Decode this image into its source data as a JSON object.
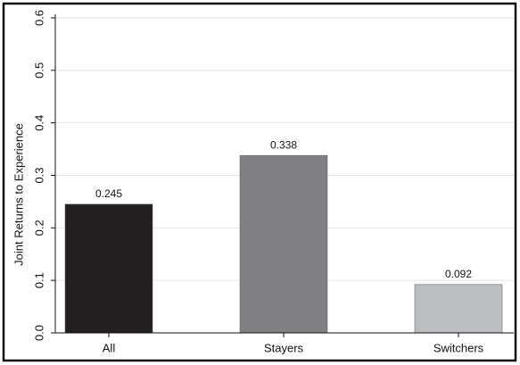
{
  "chart_data": {
    "type": "bar",
    "ylabel": "Joint Returns to Experience",
    "categories": [
      "All",
      "Stayers",
      "Switchers"
    ],
    "values": [
      0.245,
      0.338,
      0.092
    ],
    "colors": [
      "#231f20",
      "#808083",
      "#bcbdc0"
    ],
    "ylim": [
      0,
      0.6
    ],
    "yticks": [
      {
        "value": 0,
        "label": "0.0"
      },
      0.1,
      0.2,
      0.3,
      0.4,
      0.5,
      0.6
    ],
    "grid": true
  }
}
